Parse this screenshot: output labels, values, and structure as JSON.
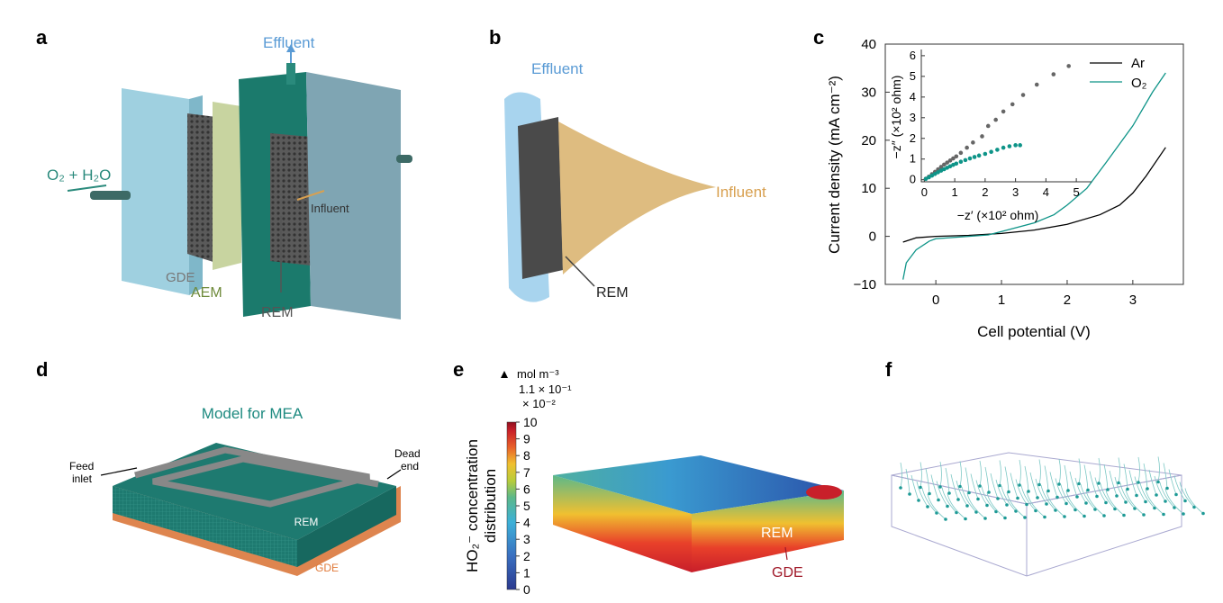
{
  "panels": {
    "a": {
      "label": "a",
      "effluent": "Effluent",
      "o2h2o": "O₂ + H₂O",
      "influent": "Influent",
      "gde": "GDE",
      "aem": "AEM",
      "rem": "REM"
    },
    "b": {
      "label": "b",
      "effluent": "Effluent",
      "influent": "Influent",
      "rem": "REM"
    },
    "c": {
      "label": "c"
    },
    "d": {
      "label": "d",
      "title": "Model for MEA",
      "feed_inlet_1": "Feed",
      "feed_inlet_2": "inlet",
      "dead_end_1": "Dead",
      "dead_end_2": "end",
      "rem": "REM",
      "gde": "GDE"
    },
    "e": {
      "label": "e",
      "unit": "mol m⁻³",
      "max_note": "1.1 × 10⁻¹",
      "scale_note": "× 10⁻²",
      "colorbar_title_1": "HO₂⁻ concentration",
      "colorbar_title_2": "distribution",
      "ticks": [
        "0",
        "1",
        "2",
        "3",
        "4",
        "5",
        "6",
        "7",
        "8",
        "9",
        "10"
      ],
      "rem": "REM",
      "gde": "GDE",
      "max_marker_icon": "triangle-up-icon"
    },
    "f": {
      "label": "f"
    }
  },
  "colors": {
    "teal": "#0e9488",
    "ar": "#000000",
    "influent": "#d8b06a",
    "effluent": "#5a9bd5",
    "gde": "#e07a3a",
    "aem": "#6e8a3a"
  },
  "chart_data": {
    "type": "line",
    "xlabel": "Cell potential (V)",
    "ylabel": "Current density (mA cm⁻²)",
    "xlim": [
      -0.77,
      3.77
    ],
    "ylim": [
      -10,
      40
    ],
    "xticks": [
      "0",
      "1",
      "2",
      "3"
    ],
    "yticks": [
      "−10",
      "0",
      "10",
      "20",
      "30",
      "40"
    ],
    "legend": "top-right",
    "series": [
      {
        "name": "Ar",
        "color": "#000000",
        "x": [
          -0.5,
          -0.3,
          0,
          0.5,
          1,
          1.5,
          2,
          2.5,
          2.8,
          3,
          3.2,
          3.5
        ],
        "y": [
          -1.2,
          -0.3,
          0,
          0.2,
          0.6,
          1.3,
          2.5,
          4.5,
          6.5,
          9,
          12.5,
          18.5
        ]
      },
      {
        "name": "O₂",
        "color": "#0e9488",
        "x": [
          -0.5,
          -0.45,
          -0.3,
          -0.1,
          0,
          0.5,
          0.8,
          1,
          1.5,
          1.8,
          2,
          2.3,
          2.6,
          3,
          3.3,
          3.5
        ],
        "y": [
          -9,
          -5.5,
          -2.8,
          -1,
          -0.5,
          0,
          0.3,
          1,
          2.8,
          4.5,
          6.5,
          10,
          15.5,
          23,
          30,
          34
        ]
      }
    ],
    "inset": {
      "type": "scatter",
      "xlabel": "−z′ (×10² ohm)",
      "ylabel": "−z″ (×10² ohm)",
      "xlim": [
        -0.1,
        5.5
      ],
      "ylim": [
        -0.1,
        6.3
      ],
      "xticks": [
        "0",
        "1",
        "2",
        "3",
        "4",
        "5"
      ],
      "yticks": [
        "0",
        "1",
        "2",
        "3",
        "4",
        "5",
        "6"
      ],
      "series": [
        {
          "name": "Ar",
          "color": "#666666",
          "x": [
            0.05,
            0.15,
            0.25,
            0.35,
            0.45,
            0.55,
            0.65,
            0.75,
            0.85,
            0.95,
            1.05,
            1.2,
            1.4,
            1.6,
            1.9,
            2.1,
            2.35,
            2.6,
            2.9,
            3.25,
            3.7,
            4.25,
            4.75
          ],
          "y": [
            0.05,
            0.15,
            0.27,
            0.38,
            0.5,
            0.62,
            0.73,
            0.83,
            0.93,
            1.03,
            1.13,
            1.3,
            1.55,
            1.8,
            2.1,
            2.6,
            2.9,
            3.3,
            3.65,
            4.1,
            4.6,
            5.1,
            5.5
          ]
        },
        {
          "name": "O₂",
          "color": "#0e9488",
          "x": [
            0.05,
            0.15,
            0.25,
            0.35,
            0.45,
            0.55,
            0.65,
            0.75,
            0.85,
            0.95,
            1.05,
            1.2,
            1.35,
            1.5,
            1.65,
            1.8,
            2,
            2.2,
            2.4,
            2.6,
            2.8,
            3,
            3.15
          ],
          "y": [
            0.04,
            0.12,
            0.2,
            0.28,
            0.36,
            0.44,
            0.51,
            0.58,
            0.65,
            0.72,
            0.78,
            0.87,
            0.95,
            1.03,
            1.1,
            1.17,
            1.25,
            1.35,
            1.45,
            1.55,
            1.62,
            1.67,
            1.67
          ]
        }
      ]
    }
  }
}
